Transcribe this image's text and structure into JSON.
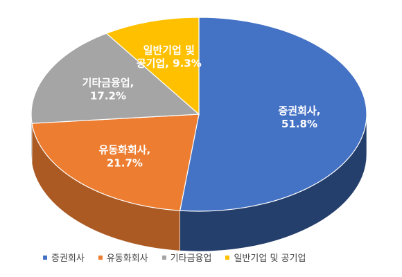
{
  "chart_data": {
    "type": "pie",
    "title": "",
    "categories": [
      "증권회사",
      "유동화회사",
      "기타금융업",
      "일반기업 및 공기업"
    ],
    "values": [
      51.8,
      21.7,
      17.2,
      9.3
    ],
    "unit": "%",
    "colors": [
      "#4472C4",
      "#ED7D31",
      "#A5A5A5",
      "#FFC000"
    ],
    "labels": [
      {
        "lines": [
          "증권회사,",
          "51.8%"
        ]
      },
      {
        "lines": [
          "유동화회사,",
          "21.7%"
        ]
      },
      {
        "lines": [
          "기타금융업,",
          "17.2%"
        ]
      },
      {
        "lines": [
          "일반기업 및",
          "공기업, 9.3%"
        ]
      }
    ],
    "legend_position": "bottom",
    "style": "3d"
  }
}
